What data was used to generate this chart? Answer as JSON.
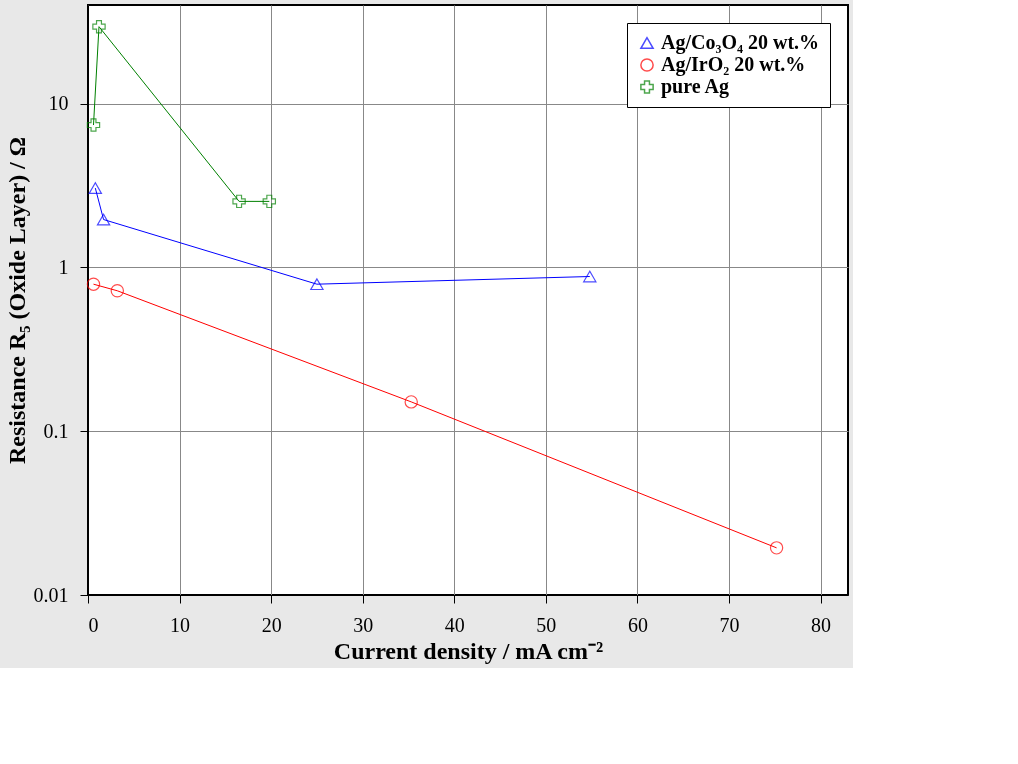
{
  "chart_data": {
    "type": "line",
    "xlabel": "Current density / mA cm⁻²",
    "ylabel": "Resistance R₅ (Oxide Layer) / Ω",
    "log": "y",
    "grid": true,
    "legend": "top right",
    "xlim": [
      0,
      83
    ],
    "xticks": [
      0,
      10,
      20,
      30,
      40,
      50,
      60,
      70,
      80
    ],
    "ylim": [
      0.01,
      40
    ],
    "yticks": [
      0.01,
      0.1,
      1,
      10
    ],
    "line_style": "solid",
    "series": [
      {
        "name": "Ag/Co₃O₄ 20 wt.%",
        "color": "#0000ff",
        "marker": "triangle",
        "x": [
          0.8,
          1.7,
          25,
          54.8
        ],
        "values": [
          3.05,
          1.96,
          0.79,
          0.88
        ]
      },
      {
        "name": "Ag/IrO₂ 20 wt.%",
        "color": "#ff0000",
        "marker": "circle",
        "x": [
          0.6,
          3.2,
          35.3,
          75.2
        ],
        "values": [
          0.79,
          0.72,
          0.151,
          0.0194
        ]
      },
      {
        "name": "pure Ag",
        "color": "#008000",
        "marker": "cross",
        "x": [
          0.6,
          1.2,
          16.5,
          19.8
        ],
        "values": [
          7.4,
          29.5,
          2.53,
          2.53
        ]
      }
    ]
  }
}
